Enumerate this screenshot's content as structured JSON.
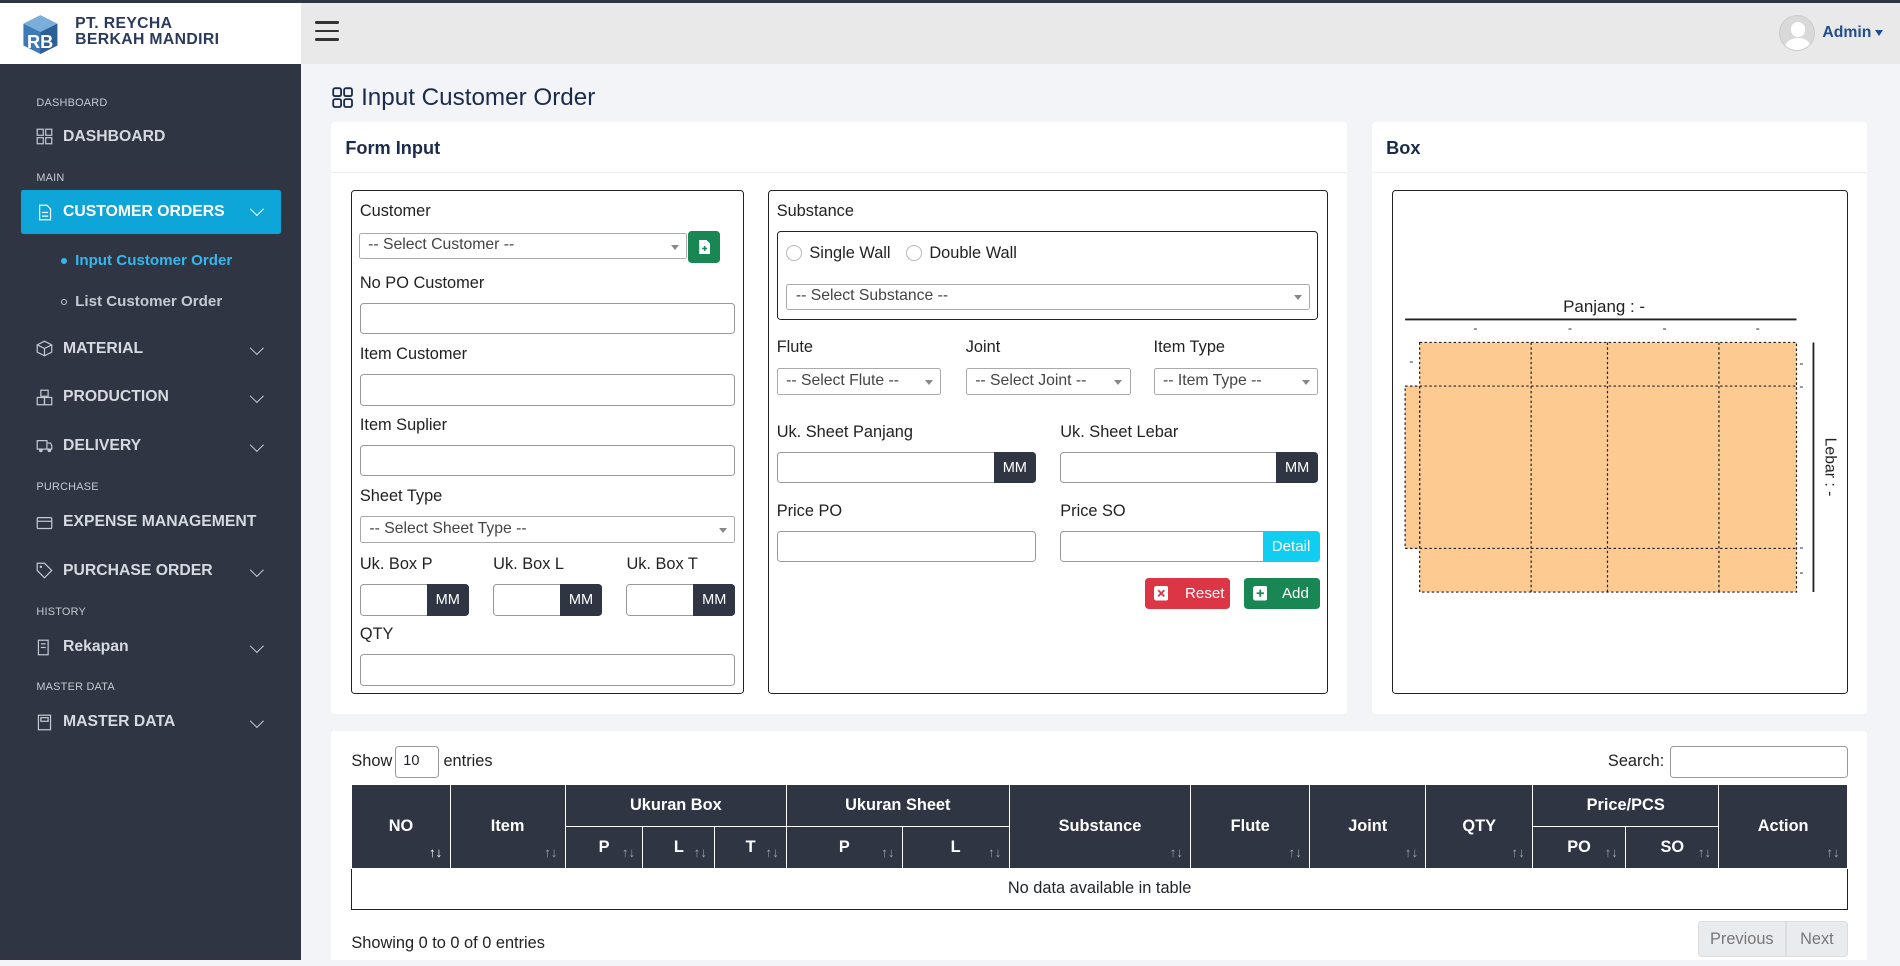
{
  "brand": {
    "line1": "PT. REYCHA",
    "line2": "BERKAH MANDIRI"
  },
  "user": {
    "name": "Admin"
  },
  "sidebar": {
    "sections": [
      "DASHBOARD",
      "MAIN",
      "PURCHASE",
      "HISTORY",
      "MASTER DATA"
    ],
    "items": [
      {
        "label": "DASHBOARD"
      },
      {
        "label": "CUSTOMER ORDERS"
      },
      {
        "label": "MATERIAL"
      },
      {
        "label": "PRODUCTION"
      },
      {
        "label": "DELIVERY"
      },
      {
        "label": "EXPENSE MANAGEMENT"
      },
      {
        "label": "PURCHASE ORDER"
      },
      {
        "label": "Rekapan"
      },
      {
        "label": "MASTER DATA"
      }
    ],
    "subitems": [
      {
        "label": "Input Customer Order"
      },
      {
        "label": "List Customer Order"
      }
    ]
  },
  "page": {
    "title": "Input Customer Order"
  },
  "form": {
    "title": "Form Input",
    "customer_label": "Customer",
    "customer_placeholder": "-- Select Customer --",
    "no_po_label": "No PO Customer",
    "item_customer_label": "Item Customer",
    "item_suplier_label": "Item Suplier",
    "sheet_type_label": "Sheet Type",
    "sheet_type_placeholder": "-- Select Sheet Type --",
    "box_p_label": "Uk. Box P",
    "box_l_label": "Uk. Box L",
    "box_t_label": "Uk. Box T",
    "unit": "MM",
    "qty_label": "QTY",
    "substance_label": "Substance",
    "single_wall": "Single Wall",
    "double_wall": "Double Wall",
    "substance_placeholder": "-- Select Substance --",
    "flute_label": "Flute",
    "flute_placeholder": "-- Select Flute --",
    "joint_label": "Joint",
    "joint_placeholder": "-- Select Joint --",
    "item_type_label": "Item Type",
    "item_type_placeholder": "-- Item Type --",
    "sheet_panjang_label": "Uk. Sheet Panjang",
    "sheet_lebar_label": "Uk. Sheet Lebar",
    "price_po_label": "Price PO",
    "price_so_label": "Price SO",
    "detail_button": "Detail",
    "reset_button": "Reset",
    "add_button": "Add"
  },
  "box": {
    "title": "Box",
    "panjang_label": "Panjang : -",
    "lebar_label": "Lebar : -",
    "dash": "-"
  },
  "table": {
    "show_label": "Show",
    "entries_value": "10",
    "entries_label": "entries",
    "search_label": "Search:",
    "headers": {
      "no": "NO",
      "item": "Item",
      "ukuran_box": "Ukuran Box",
      "p": "P",
      "l": "L",
      "t": "T",
      "ukuran_sheet": "Ukuran Sheet",
      "substance": "Substance",
      "flute": "Flute",
      "joint": "Joint",
      "qty": "QTY",
      "price_pcs": "Price/PCS",
      "po": "PO",
      "so": "SO",
      "action": "Action"
    },
    "empty": "No data available in table",
    "info": "Showing 0 to 0 of 0 entries",
    "prev": "Previous",
    "next": "Next"
  },
  "colors": {
    "sidebar": "#2f3542",
    "accent": "#0ea5d8",
    "box_fill": "#fdca92"
  }
}
